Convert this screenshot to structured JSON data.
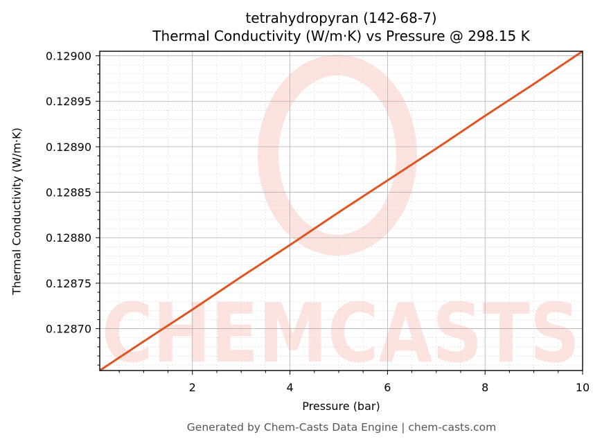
{
  "chart_data": {
    "type": "line",
    "title": "tetrahydropyran (142-68-7)",
    "subtitle": "Thermal Conductivity (W/m·K) vs Pressure @ 298.15 K",
    "xlabel": "Pressure (bar)",
    "ylabel": "Thermal Conductivity (W/m·K)",
    "xlim": [
      0.1,
      10
    ],
    "ylim": [
      0.128654,
      0.129005
    ],
    "x_ticks": [
      2,
      4,
      6,
      8,
      10
    ],
    "x_tick_labels": [
      "2",
      "4",
      "6",
      "8",
      "10"
    ],
    "y_ticks": [
      0.1287,
      0.12875,
      0.1288,
      0.12885,
      0.1289,
      0.12895,
      0.129
    ],
    "y_tick_labels": [
      "0.12870",
      "0.12875",
      "0.12880",
      "0.12885",
      "0.12890",
      "0.12895",
      "0.12900"
    ],
    "grid": true,
    "minor_grid": true,
    "legend": null,
    "series": [
      {
        "name": "Thermal Conductivity",
        "color": "#e0541f",
        "x": [
          0.1,
          1,
          2,
          3,
          4,
          5,
          6,
          7,
          8,
          9,
          10
        ],
        "y": [
          0.128654,
          0.128686,
          0.128721,
          0.128757,
          0.128792,
          0.128828,
          0.128863,
          0.128898,
          0.128934,
          0.128969,
          0.129005
        ]
      }
    ]
  },
  "footer": "Generated by Chem-Casts Data Engine | chem-casts.com",
  "watermark": "CHEMCASTS",
  "colors": {
    "line": "#e0541f",
    "watermark": "#fde3e0",
    "grid_major": "#b0b0b0",
    "grid_minor": "#dcdcdc"
  }
}
